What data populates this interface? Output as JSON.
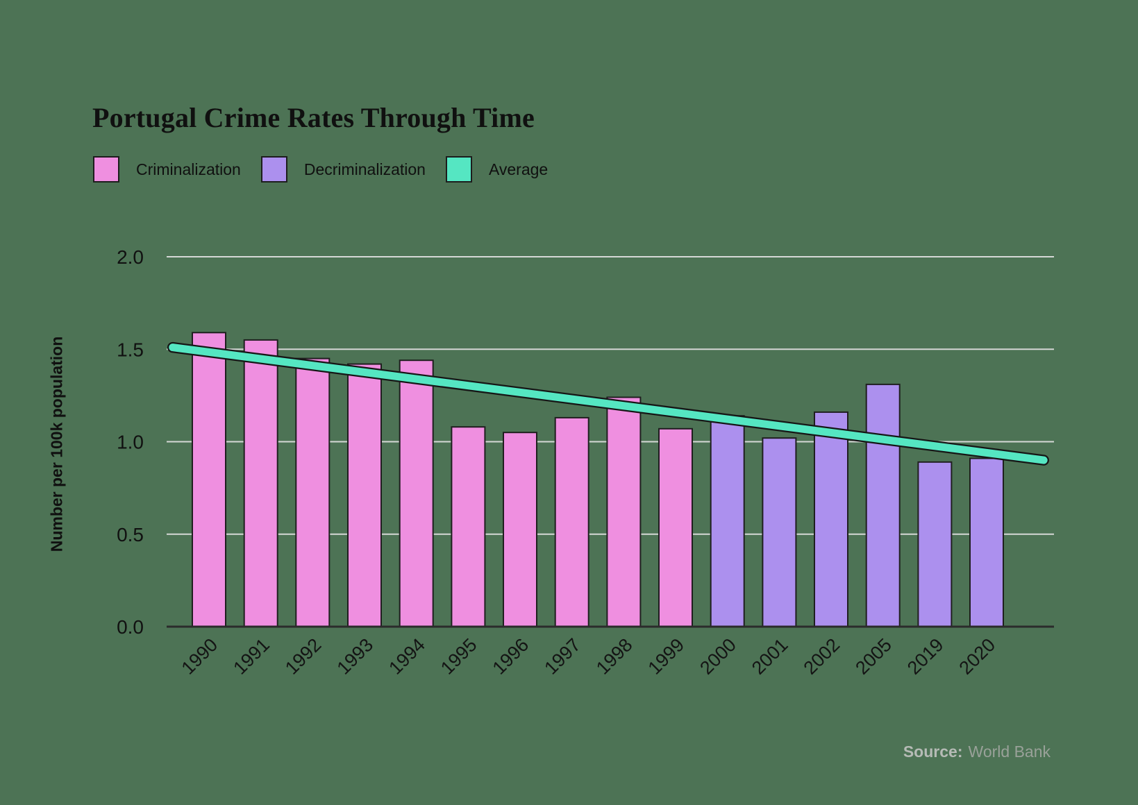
{
  "title": "Portugal Crime Rates Through Time",
  "source": {
    "prefix": "Source:",
    "text": "World Bank"
  },
  "colors": {
    "background": "#4d7355",
    "gridline": "#d6d8d6",
    "axis_line": "#2b2b2b",
    "bar_border": "#1f1f1f",
    "trendline_outline": "#161616",
    "text": "#111111",
    "source_prefix": "#b6bbb6",
    "source_text": "#99a199"
  },
  "chart_data": {
    "type": "bar",
    "title": "Portugal Crime Rates Through Time",
    "xlabel": "",
    "ylabel": "Number per 100k population",
    "ylim": [
      0,
      2.0
    ],
    "yticks": [
      0,
      0.5,
      1.0,
      1.5,
      2.0
    ],
    "ytick_labels": [
      "0.0",
      "0.5",
      "1.0",
      "1.5",
      "2.0"
    ],
    "grid": true,
    "legend_position": "top-left",
    "categories": [
      "1990",
      "1991",
      "1992",
      "1993",
      "1994",
      "1995",
      "1996",
      "1997",
      "1998",
      "1999",
      "2000",
      "2001",
      "2002",
      "2005",
      "2019",
      "2020"
    ],
    "series": [
      {
        "name": "Criminalization",
        "type": "bar",
        "color": "#ef8fe0",
        "values": [
          1.59,
          1.55,
          1.45,
          1.42,
          1.44,
          1.08,
          1.05,
          1.13,
          1.24,
          1.07,
          null,
          null,
          null,
          null,
          null,
          null
        ]
      },
      {
        "name": "Decriminalization",
        "type": "bar",
        "color": "#ac90ee",
        "values": [
          null,
          null,
          null,
          null,
          null,
          null,
          null,
          null,
          null,
          null,
          1.14,
          1.02,
          1.16,
          1.31,
          0.89,
          0.91
        ]
      },
      {
        "name": "Average",
        "type": "trendline",
        "color": "#55e6c2",
        "points_index_value": [
          [
            -0.7,
            1.51
          ],
          [
            16.1,
            0.9
          ]
        ]
      }
    ]
  }
}
